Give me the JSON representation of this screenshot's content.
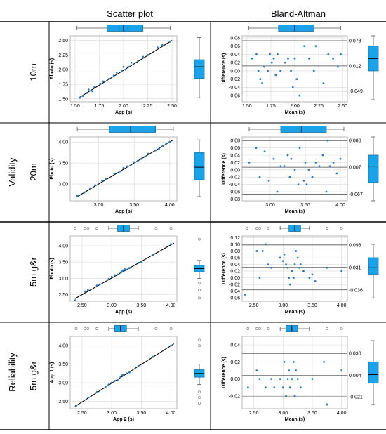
{
  "table": {
    "col_headers": [
      "Scatter plot",
      "Bland-Altman"
    ],
    "groups": [
      {
        "label": "Validity",
        "rows": [
          "10m",
          "20m"
        ]
      },
      {
        "label": "Reliability",
        "rows": [
          "5m g&r",
          "5m g&r"
        ]
      }
    ]
  },
  "colors": {
    "points": "#2b7bba",
    "box_fill": "#1aa3e8",
    "box_stroke": "#1a6aa0",
    "line": "#000000",
    "grid": "#d9d9d9"
  },
  "chart_data": [
    {
      "type": "scatter",
      "row": "10m",
      "panel": "scatter",
      "xlabel": "App (s)",
      "ylabel": "Photo (s)",
      "xlim": [
        1.45,
        2.55
      ],
      "ylim": [
        1.45,
        2.58
      ],
      "xticks": [
        "1.50",
        "1.75",
        "2.00",
        "2.25",
        "2.50"
      ],
      "yticks": [
        "1.50",
        "1.75",
        "2.00",
        "2.25",
        "2.50"
      ],
      "points": [
        [
          1.55,
          1.52
        ],
        [
          1.58,
          1.55
        ],
        [
          1.62,
          1.6
        ],
        [
          1.64,
          1.66
        ],
        [
          1.68,
          1.63
        ],
        [
          1.7,
          1.7
        ],
        [
          1.76,
          1.76
        ],
        [
          1.79,
          1.8
        ],
        [
          1.85,
          1.84
        ],
        [
          1.9,
          1.9
        ],
        [
          1.93,
          1.95
        ],
        [
          1.98,
          1.98
        ],
        [
          2.0,
          2.05
        ],
        [
          2.02,
          2.0
        ],
        [
          2.05,
          2.05
        ],
        [
          2.08,
          2.12
        ],
        [
          2.15,
          2.15
        ],
        [
          2.2,
          2.22
        ],
        [
          2.25,
          2.25
        ],
        [
          2.35,
          2.38
        ],
        [
          2.4,
          2.42
        ],
        [
          2.48,
          2.48
        ]
      ],
      "fit": [
        [
          1.55,
          1.53
        ],
        [
          2.5,
          2.5
        ]
      ]
    },
    {
      "type": "scatter",
      "row": "10m",
      "panel": "bland-altman",
      "xlabel": "Mean (s)",
      "ylabel": "Difference (s)",
      "xlim": [
        1.45,
        2.55
      ],
      "ylim": [
        -0.075,
        0.085
      ],
      "xticks": [
        "1.50",
        "1.75",
        "2.00",
        "2.25",
        "2.50"
      ],
      "yticks": [
        "0.08",
        "0.06",
        "0.04",
        "0.02",
        "0.00",
        "-0.02",
        "-0.04",
        "-0.06"
      ],
      "hlines": [
        {
          "y": 0.073,
          "label": "0.073"
        },
        {
          "y": 0.012,
          "label": "0.012"
        },
        {
          "y": -0.049,
          "label": "-0.049"
        }
      ],
      "points": [
        [
          1.55,
          0.03
        ],
        [
          1.6,
          0.04
        ],
        [
          1.62,
          0.0
        ],
        [
          1.64,
          -0.02
        ],
        [
          1.66,
          -0.03
        ],
        [
          1.68,
          0.01
        ],
        [
          1.72,
          0.0
        ],
        [
          1.74,
          0.04
        ],
        [
          1.76,
          0.02
        ],
        [
          1.78,
          0.03
        ],
        [
          1.8,
          -0.01
        ],
        [
          1.82,
          0.04
        ],
        [
          1.85,
          0.0
        ],
        [
          1.9,
          0.02
        ],
        [
          1.93,
          0.03
        ],
        [
          1.96,
          0.0
        ],
        [
          1.98,
          -0.04
        ],
        [
          2.0,
          0.03
        ],
        [
          2.02,
          -0.02
        ],
        [
          2.05,
          -0.06
        ],
        [
          2.1,
          0.06
        ],
        [
          2.15,
          0.03
        ],
        [
          2.2,
          0.0
        ],
        [
          2.22,
          0.06
        ],
        [
          2.3,
          -0.03
        ],
        [
          2.35,
          0.04
        ],
        [
          2.4,
          0.03
        ],
        [
          2.45,
          0.01
        ],
        [
          2.48,
          0.04
        ]
      ]
    },
    {
      "type": "scatter",
      "row": "20m",
      "panel": "scatter",
      "xlabel": "App (s)",
      "ylabel": "Photo (s)",
      "xlim": [
        2.6,
        4.1
      ],
      "ylim": [
        2.6,
        4.12
      ],
      "xticks": [
        "3.00",
        "3.50",
        "4.00"
      ],
      "yticks": [
        "3.00",
        "3.50",
        "4.00"
      ],
      "points": [
        [
          2.7,
          2.72
        ],
        [
          2.8,
          2.8
        ],
        [
          2.88,
          2.9
        ],
        [
          2.95,
          2.97
        ],
        [
          3.05,
          3.08
        ],
        [
          3.1,
          3.12
        ],
        [
          3.22,
          3.25
        ],
        [
          3.3,
          3.3
        ],
        [
          3.35,
          3.38
        ],
        [
          3.4,
          3.42
        ],
        [
          3.45,
          3.44
        ],
        [
          3.5,
          3.52
        ],
        [
          3.55,
          3.55
        ],
        [
          3.6,
          3.6
        ],
        [
          3.65,
          3.65
        ],
        [
          3.7,
          3.72
        ],
        [
          3.8,
          3.8
        ],
        [
          3.85,
          3.84
        ],
        [
          3.9,
          3.9
        ],
        [
          3.95,
          3.96
        ],
        [
          4.0,
          4.0
        ]
      ],
      "fit": [
        [
          2.7,
          2.7
        ],
        [
          4.05,
          4.05
        ]
      ]
    },
    {
      "type": "scatter",
      "row": "20m",
      "panel": "bland-altman",
      "xlabel": "Mean (s)",
      "ylabel": "Difference (s)",
      "xlim": [
        2.6,
        4.1
      ],
      "ylim": [
        -0.085,
        0.09
      ],
      "xticks": [
        "3.00",
        "3.50",
        "4.00"
      ],
      "yticks": [
        "0.08",
        "0.06",
        "0.04",
        "0.02",
        "0.00",
        "-0.02",
        "-0.04",
        "-0.06",
        "-0.08"
      ],
      "hlines": [
        {
          "y": 0.08,
          "label": "0.080"
        },
        {
          "y": 0.007,
          "label": "0.007"
        },
        {
          "y": -0.067,
          "label": "-0.067"
        }
      ],
      "points": [
        [
          2.7,
          0.02
        ],
        [
          2.8,
          0.06
        ],
        [
          2.85,
          -0.02
        ],
        [
          2.92,
          0.05
        ],
        [
          2.98,
          -0.03
        ],
        [
          3.05,
          0.03
        ],
        [
          3.1,
          -0.06
        ],
        [
          3.15,
          0.01
        ],
        [
          3.2,
          0.01
        ],
        [
          3.25,
          0.04
        ],
        [
          3.28,
          -0.02
        ],
        [
          3.3,
          0.03
        ],
        [
          3.35,
          0.0
        ],
        [
          3.4,
          -0.04
        ],
        [
          3.42,
          0.06
        ],
        [
          3.48,
          -0.03
        ],
        [
          3.5,
          0.02
        ],
        [
          3.52,
          -0.04
        ],
        [
          3.55,
          0.0
        ],
        [
          3.6,
          -0.02
        ],
        [
          3.65,
          0.02
        ],
        [
          3.7,
          0.01
        ],
        [
          3.75,
          0.04
        ],
        [
          3.8,
          -0.06
        ],
        [
          3.82,
          0.08
        ],
        [
          3.85,
          0.01
        ],
        [
          3.9,
          0.02
        ],
        [
          3.95,
          -0.01
        ],
        [
          4.0,
          0.03
        ]
      ]
    },
    {
      "type": "scatter",
      "row": "5m g&r",
      "panel": "scatter",
      "xlabel": "App (s)",
      "ylabel": "Photo (s)",
      "xlim": [
        2.3,
        4.1
      ],
      "ylim": [
        2.3,
        4.3
      ],
      "xticks": [
        "2.50",
        "3.00",
        "3.50",
        "4.00"
      ],
      "yticks": [
        "2.50",
        "3.00",
        "3.50",
        "4.00"
      ],
      "points": [
        [
          2.38,
          2.33
        ],
        [
          2.55,
          2.6
        ],
        [
          2.6,
          2.65
        ],
        [
          2.75,
          2.78
        ],
        [
          2.8,
          2.82
        ],
        [
          2.95,
          2.98
        ],
        [
          3.0,
          3.05
        ],
        [
          3.05,
          3.1
        ],
        [
          3.1,
          3.12
        ],
        [
          3.15,
          3.18
        ],
        [
          3.18,
          3.22
        ],
        [
          3.2,
          3.25
        ],
        [
          3.22,
          3.28
        ],
        [
          3.25,
          3.27
        ],
        [
          3.3,
          3.32
        ],
        [
          3.45,
          3.48
        ],
        [
          3.5,
          3.5
        ],
        [
          3.7,
          3.72
        ],
        [
          4.0,
          4.05
        ]
      ],
      "fit": [
        [
          2.38,
          2.38
        ],
        [
          4.05,
          4.08
        ]
      ]
    },
    {
      "type": "scatter",
      "row": "5m g&r",
      "panel": "bland-altman",
      "xlabel": "Mean (s)",
      "ylabel": "Difference (s)",
      "xlim": [
        2.3,
        4.1
      ],
      "ylim": [
        -0.07,
        0.125
      ],
      "xticks": [
        "2.50",
        "3.00",
        "3.50",
        "4.00"
      ],
      "yticks": [
        "0.12",
        "0.10",
        "0.08",
        "0.06",
        "0.04",
        "0.02",
        "0.00",
        "-0.02",
        "-0.04",
        "-0.06"
      ],
      "hlines": [
        {
          "y": 0.098,
          "label": "0.098"
        },
        {
          "y": 0.031,
          "label": "0.031"
        },
        {
          "y": -0.036,
          "label": "-0.036"
        }
      ],
      "points": [
        [
          2.35,
          -0.05
        ],
        [
          2.55,
          0.08
        ],
        [
          2.6,
          0.0
        ],
        [
          2.65,
          0.08
        ],
        [
          2.7,
          0.1
        ],
        [
          2.75,
          0.04
        ],
        [
          2.8,
          0.03
        ],
        [
          2.95,
          0.06
        ],
        [
          3.0,
          0.05
        ],
        [
          3.02,
          0.07
        ],
        [
          3.05,
          0.04
        ],
        [
          3.08,
          0.03
        ],
        [
          3.1,
          0.0
        ],
        [
          3.12,
          -0.02
        ],
        [
          3.15,
          0.02
        ],
        [
          3.18,
          0.0
        ],
        [
          3.2,
          0.04
        ],
        [
          3.22,
          0.08
        ],
        [
          3.25,
          0.06
        ],
        [
          3.28,
          0.03
        ],
        [
          3.3,
          0.04
        ],
        [
          3.35,
          0.02
        ],
        [
          3.45,
          0.0
        ],
        [
          3.5,
          0.01
        ],
        [
          3.55,
          -0.01
        ],
        [
          3.75,
          0.03
        ],
        [
          4.0,
          0.02
        ]
      ]
    },
    {
      "type": "scatter",
      "row": "5m g&r reliability",
      "panel": "scatter",
      "xlabel": "App 2 (s)",
      "ylabel": "App 1 (s)",
      "xlim": [
        2.3,
        4.1
      ],
      "ylim": [
        2.3,
        4.25
      ],
      "xticks": [
        "2.50",
        "3.00",
        "3.50",
        "4.00"
      ],
      "yticks": [
        "2.50",
        "3.00",
        "3.50",
        "4.00"
      ],
      "points": [
        [
          2.4,
          2.38
        ],
        [
          2.6,
          2.6
        ],
        [
          2.75,
          2.75
        ],
        [
          2.9,
          2.9
        ],
        [
          2.95,
          2.95
        ],
        [
          3.0,
          3.0
        ],
        [
          3.05,
          3.05
        ],
        [
          3.1,
          3.08
        ],
        [
          3.15,
          3.15
        ],
        [
          3.18,
          3.2
        ],
        [
          3.2,
          3.22
        ],
        [
          3.25,
          3.25
        ],
        [
          3.3,
          3.28
        ],
        [
          3.45,
          3.45
        ],
        [
          3.7,
          3.7
        ],
        [
          4.0,
          4.0
        ]
      ],
      "fit": [
        [
          2.38,
          2.36
        ],
        [
          4.05,
          4.05
        ]
      ]
    },
    {
      "type": "scatter",
      "row": "5m g&r reliability",
      "panel": "bland-altman",
      "xlabel": "Mean (s)",
      "ylabel": "Difference (s)",
      "xlim": [
        2.3,
        4.1
      ],
      "ylim": [
        -0.035,
        0.05
      ],
      "xticks": [
        "2.50",
        "3.00",
        "3.50",
        "4.00"
      ],
      "yticks": [
        "0.04",
        "0.02",
        "0.00",
        "-0.02"
      ],
      "hlines": [
        {
          "y": 0.03,
          "label": "0.030"
        },
        {
          "y": 0.004,
          "label": "0.004"
        },
        {
          "y": -0.021,
          "label": "-0.021"
        }
      ],
      "points": [
        [
          2.4,
          -0.01
        ],
        [
          2.55,
          0.01
        ],
        [
          2.6,
          0.0
        ],
        [
          2.7,
          -0.01
        ],
        [
          2.8,
          0.0
        ],
        [
          2.85,
          -0.01
        ],
        [
          2.95,
          0.0
        ],
        [
          3.0,
          -0.01
        ],
        [
          3.02,
          0.02
        ],
        [
          3.05,
          -0.02
        ],
        [
          3.08,
          0.0
        ],
        [
          3.1,
          0.01
        ],
        [
          3.12,
          -0.01
        ],
        [
          3.15,
          0.0
        ],
        [
          3.18,
          0.02
        ],
        [
          3.2,
          -0.02
        ],
        [
          3.22,
          0.01
        ],
        [
          3.25,
          0.0
        ],
        [
          3.3,
          -0.01
        ],
        [
          3.5,
          0.0
        ],
        [
          3.7,
          0.02
        ],
        [
          3.75,
          -0.03
        ],
        [
          4.0,
          0.01
        ]
      ]
    }
  ],
  "marginal_boxes": [
    {
      "row": "10m",
      "top": {
        "min": 1.52,
        "q1": 1.83,
        "med": 2.0,
        "q3": 2.2,
        "max": 2.48,
        "outliers": []
      },
      "right": {
        "min": 1.52,
        "q1": 1.85,
        "med": 2.05,
        "q3": 2.17,
        "max": 2.55,
        "outliers": []
      },
      "ba_right": {
        "min": -0.07,
        "q1": 0.0,
        "med": 0.03,
        "q3": 0.06,
        "max": 0.085,
        "outliers": []
      }
    },
    {
      "row": "20m",
      "top": {
        "min": 2.7,
        "q1": 3.15,
        "med": 3.45,
        "q3": 3.8,
        "max": 4.05,
        "outliers": []
      },
      "right": {
        "min": 2.7,
        "q1": 3.1,
        "med": 3.4,
        "q3": 3.75,
        "max": 4.05,
        "outliers": []
      },
      "ba_right": {
        "min": -0.085,
        "q1": -0.035,
        "med": 0.01,
        "q3": 0.04,
        "max": 0.09,
        "outliers": []
      }
    },
    {
      "row": "5m g&r",
      "top": {
        "min": 2.95,
        "q1": 3.1,
        "med": 3.2,
        "q3": 3.3,
        "max": 3.45,
        "outliers": [
          2.38,
          2.55,
          2.6,
          2.75,
          3.75,
          4.0
        ]
      },
      "right": {
        "min": 3.0,
        "q1": 3.2,
        "med": 3.3,
        "q3": 3.4,
        "max": 3.55,
        "outliers": [
          2.4,
          2.65,
          2.85,
          4.2
        ]
      },
      "ba_right": {
        "min": -0.06,
        "q1": 0.01,
        "med": 0.03,
        "q3": 0.06,
        "max": 0.1,
        "outliers": []
      }
    },
    {
      "row": "5m g&r reliability",
      "top": {
        "min": 2.95,
        "q1": 3.05,
        "med": 3.15,
        "q3": 3.25,
        "max": 3.45,
        "outliers": [
          2.4,
          2.55,
          2.6,
          2.75,
          3.75,
          4.0
        ]
      },
      "right": {
        "min": 2.95,
        "q1": 3.15,
        "med": 3.25,
        "q3": 3.35,
        "max": 3.5,
        "outliers": [
          2.45,
          2.6,
          2.75,
          4.0,
          4.15
        ]
      },
      "ba_right": {
        "min": -0.03,
        "q1": -0.005,
        "med": 0.005,
        "q3": 0.02,
        "max": 0.045,
        "outliers": []
      }
    }
  ]
}
